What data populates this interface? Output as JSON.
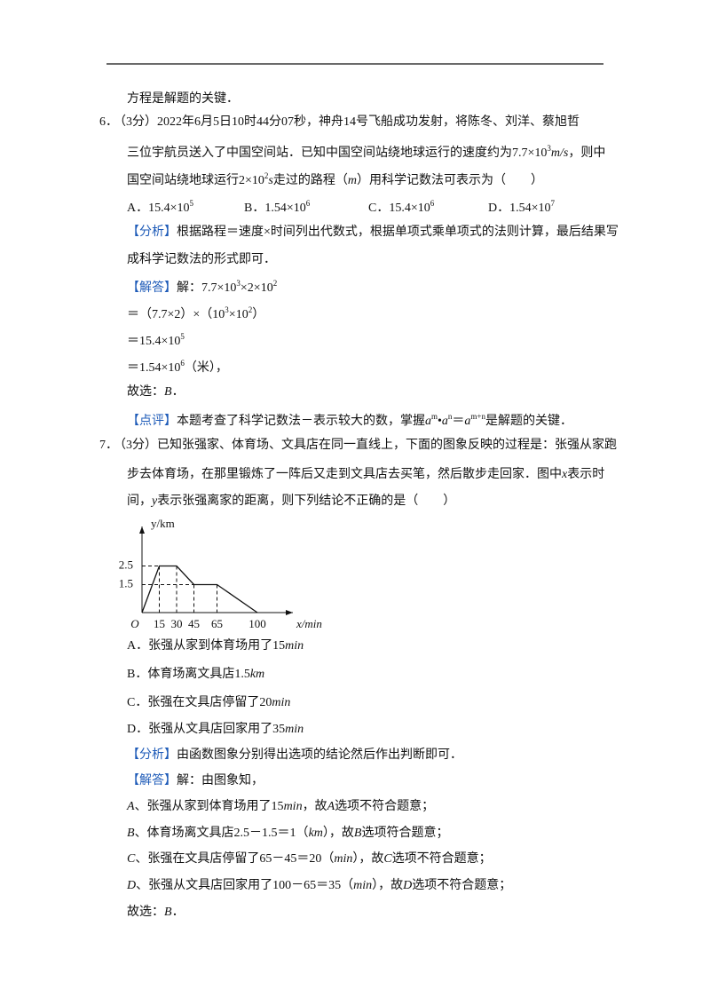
{
  "lines": [
    {
      "segs": [
        "方程是解题的关键．"
      ]
    },
    {
      "num": "6．",
      "segs": [
        "（3分）2022年6月5日10时44分07秒，神舟14号飞船成功发射，将陈冬、刘洋、蔡旭哲"
      ]
    },
    {
      "segs": [
        "三位宇航员送入了中国空间站．已知中国空间站绕地球运行的速度约为7.7×10",
        {
          "sup": "3"
        },
        {
          "i": "m/s"
        },
        "，则中"
      ]
    },
    {
      "segs": [
        "国空间站绕地球运行2×10",
        {
          "sup": "2"
        },
        {
          "i": "s"
        },
        "走过的路程（",
        {
          "i": "m"
        },
        "）用科学记数法可表示为（　　）"
      ]
    },
    {
      "cols": [
        [
          "A．15.4×10",
          {
            "sup": "5"
          }
        ],
        [
          "B．1.54×10",
          {
            "sup": "6"
          }
        ],
        [
          "C．15.4×10",
          {
            "sup": "6"
          }
        ],
        [
          "D．1.54×10",
          {
            "sup": "7"
          }
        ]
      ]
    },
    {
      "segs": [
        {
          "b": "【分析】"
        },
        "根据路程＝速度×时间列出代数式，根据单项式乘单项式的法则计算，最后结果写"
      ]
    },
    {
      "segs": [
        "成科学记数法的形式即可．"
      ]
    },
    {
      "segs": [
        {
          "b": "【解答】"
        },
        "解：7.7×10",
        {
          "sup": "3"
        },
        "×2×10",
        {
          "sup": "2"
        }
      ]
    },
    {
      "segs": [
        "＝（7.7×2）×（10",
        {
          "sup": "3"
        },
        "×10",
        {
          "sup": "2"
        },
        "）"
      ]
    },
    {
      "segs": [
        "＝15.4×10",
        {
          "sup": "5"
        }
      ]
    },
    {
      "segs": [
        "＝1.54×10",
        {
          "sup": "6"
        },
        "（米），"
      ]
    },
    {
      "segs": [
        "故选：",
        {
          "i": "B"
        },
        "．"
      ]
    },
    {
      "segs": [
        {
          "b": "【点评】"
        },
        "本题考查了科学记数法－表示较大的数，掌握",
        {
          "i": "a"
        },
        {
          "sup": "m"
        },
        "•",
        {
          "i": "a"
        },
        {
          "sup": "n"
        },
        "＝",
        {
          "i": "a"
        },
        {
          "sup": "m+n"
        },
        "是解题的关键．"
      ]
    },
    {
      "num": "7．",
      "segs": [
        "（3分）已知张强家、体育场、文具店在同一直线上，下面的图象反映的过程是：张强从家跑"
      ]
    },
    {
      "segs": [
        "步去体育场，在那里锻炼了一阵后又走到文具店去买笔，然后散步走回家．图中",
        {
          "i": "x"
        },
        "表示时"
      ]
    },
    {
      "segs": [
        "间，",
        {
          "i": "y"
        },
        "表示张强离家的距离，则下列结论不正确的是（　　）"
      ]
    },
    {
      "segs": [
        "A．张强从家到体育场用了15",
        {
          "i": "min"
        }
      ]
    },
    {
      "segs": [
        "B．体育场离文具店1.5",
        {
          "i": "km"
        }
      ]
    },
    {
      "segs": [
        "C．张强在文具店停留了20",
        {
          "i": "min"
        }
      ]
    },
    {
      "segs": [
        "D．张强从文具店回家用了35",
        {
          "i": "min"
        }
      ]
    },
    {
      "segs": [
        {
          "b": "【分析】"
        },
        "由函数图象分别得出选项的结论然后作出判断即可．"
      ]
    },
    {
      "segs": [
        {
          "b": "【解答】"
        },
        "解：由图象知，"
      ]
    },
    {
      "segs": [
        {
          "i": "A"
        },
        "、张强从家到体育场用了15",
        {
          "i": "min"
        },
        "，故",
        {
          "i": "A"
        },
        "选项不符合题意；"
      ]
    },
    {
      "segs": [
        {
          "i": "B"
        },
        "、体育场离文具店2.5－1.5＝1（",
        {
          "i": "km"
        },
        "），故",
        {
          "i": "B"
        },
        "选项符合题意；"
      ]
    },
    {
      "segs": [
        {
          "i": "C"
        },
        "、张强在文具店停留了65－45＝20（",
        {
          "i": "min"
        },
        "），故",
        {
          "i": "C"
        },
        "选项不符合题意；"
      ]
    },
    {
      "segs": [
        {
          "i": "D"
        },
        "、张强从文具店回家用了100－65＝35（",
        {
          "i": "min"
        },
        "），故",
        {
          "i": "D"
        },
        "选项不符合题意；"
      ]
    },
    {
      "segs": [
        "故选：",
        {
          "i": "B"
        },
        "．"
      ]
    }
  ],
  "figure": {
    "ylabel": "y/km",
    "xlabel": "x/min",
    "origin": "O",
    "xticks": [
      15,
      30,
      45,
      65,
      100
    ],
    "yticks": [
      2.5,
      1.5
    ],
    "x": [
      0,
      15,
      30,
      45,
      65,
      100
    ],
    "y": [
      0,
      2.5,
      2.5,
      1.5,
      1.5,
      0
    ]
  }
}
